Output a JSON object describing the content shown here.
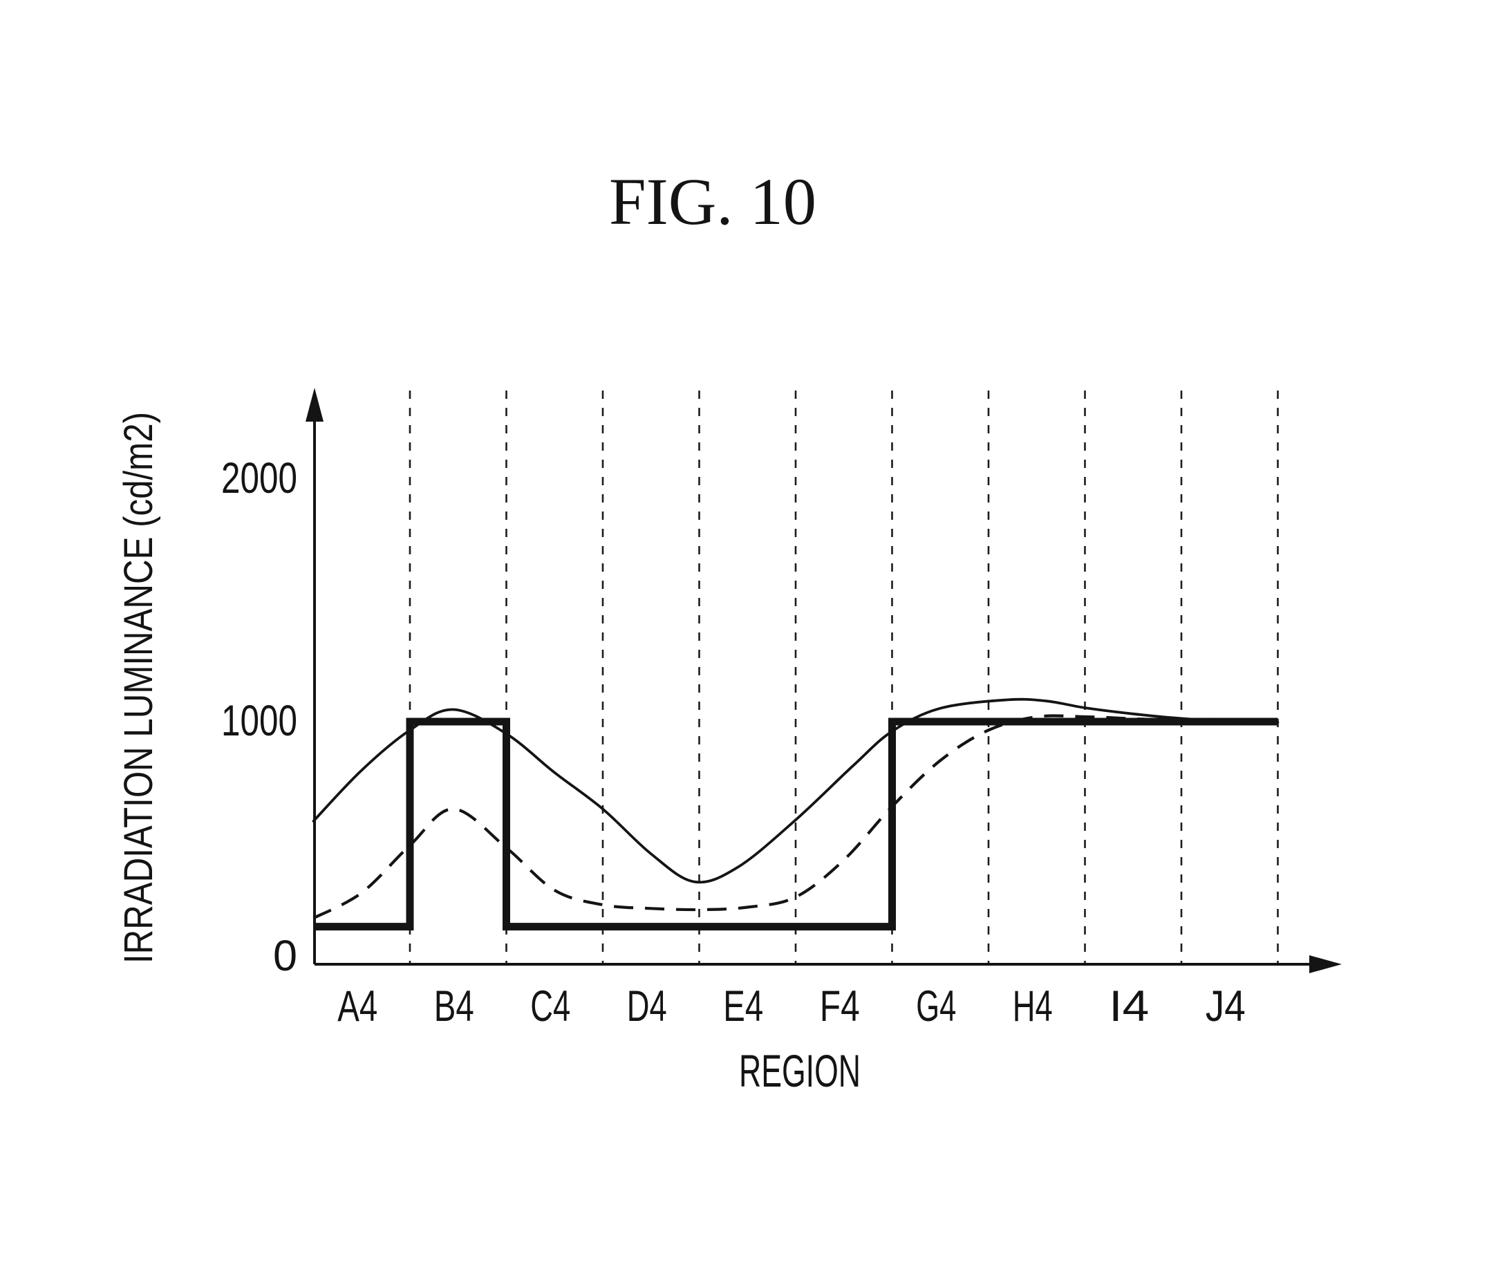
{
  "figure": {
    "background_color": "#ffffff",
    "ink_color": "#141414"
  },
  "chart_data": {
    "type": "line",
    "title": "FIG. 10",
    "xlabel": "REGION",
    "ylabel": "IRRADIATION LUMINANCE (cd/m2)",
    "categories": [
      "A4",
      "B4",
      "C4",
      "D4",
      "E4",
      "F4",
      "G4",
      "H4",
      "I4",
      "J4"
    ],
    "y_ticks": [
      0,
      1000,
      2000
    ],
    "y_tick_labels": [
      "0",
      "1000",
      "2000"
    ],
    "ylim": [
      0,
      2350
    ],
    "xlim_regions": [
      0,
      10
    ],
    "grid": "dashed vertical lines at each region boundary",
    "legend": "none",
    "axes_arrows": true,
    "series": [
      {
        "name": "step-target-luminance",
        "style": "thick-solid-step",
        "points": [
          [
            0,
            155
          ],
          [
            1,
            155
          ],
          [
            1,
            1000
          ],
          [
            2,
            1000
          ],
          [
            2,
            155
          ],
          [
            6,
            155
          ],
          [
            6,
            1000
          ],
          [
            10,
            1000
          ]
        ]
      },
      {
        "name": "smooth-luminance-solid",
        "style": "thin-solid-smooth",
        "points": [
          [
            0,
            590
          ],
          [
            0.5,
            800
          ],
          [
            1,
            965
          ],
          [
            1.45,
            1050
          ],
          [
            2,
            950
          ],
          [
            2.5,
            790
          ],
          [
            3,
            640
          ],
          [
            3.5,
            455
          ],
          [
            3.95,
            340
          ],
          [
            4.4,
            400
          ],
          [
            5,
            595
          ],
          [
            5.6,
            820
          ],
          [
            6,
            960
          ],
          [
            6.5,
            1055
          ],
          [
            7.2,
            1090
          ],
          [
            7.6,
            1085
          ],
          [
            8,
            1057
          ],
          [
            8.5,
            1032
          ],
          [
            9,
            1013
          ],
          [
            9.5,
            1002
          ],
          [
            10,
            997
          ]
        ]
      },
      {
        "name": "smooth-luminance-dashed",
        "style": "thin-dashed-smooth",
        "points": [
          [
            0,
            190
          ],
          [
            0.5,
            295
          ],
          [
            1,
            490
          ],
          [
            1.45,
            640
          ],
          [
            2,
            480
          ],
          [
            2.5,
            305
          ],
          [
            3,
            245
          ],
          [
            3.5,
            230
          ],
          [
            4,
            225
          ],
          [
            4.5,
            235
          ],
          [
            5,
            277
          ],
          [
            5.5,
            430
          ],
          [
            6,
            650
          ],
          [
            6.5,
            840
          ],
          [
            7,
            965
          ],
          [
            7.5,
            1020
          ],
          [
            8,
            1020
          ],
          [
            8.5,
            1012
          ],
          [
            9,
            1005
          ],
          [
            10,
            1000
          ]
        ]
      }
    ]
  }
}
